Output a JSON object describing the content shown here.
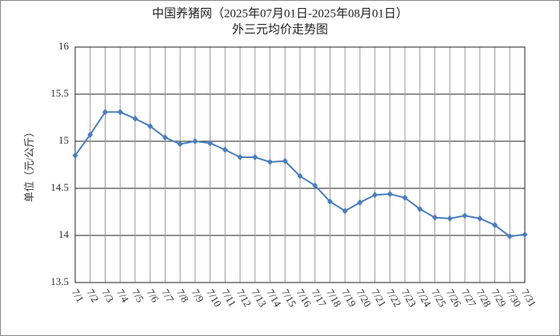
{
  "chart_data": {
    "type": "line",
    "title": "中国养猪网（2025年07月01日-2025年08月01日）",
    "subtitle": "外三元均价走势图",
    "y_label": "单位（元/公斤）",
    "categories": [
      "7/1",
      "7/2",
      "7/3",
      "7/4",
      "7/5",
      "7/6",
      "7/7",
      "7/8",
      "7/9",
      "7/10",
      "7/11",
      "7/12",
      "7/13",
      "7/14",
      "7/15",
      "7/16",
      "7/17",
      "7/18",
      "7/19",
      "7/20",
      "7/21",
      "7/22",
      "7/23",
      "7/24",
      "7/25",
      "7/26",
      "7/27",
      "7/28",
      "7/29",
      "7/30",
      "7/31"
    ],
    "series": [
      {
        "name": "外三元",
        "color": "#4a7ebb",
        "values": [
          14.85,
          15.07,
          15.31,
          15.31,
          15.24,
          15.16,
          15.04,
          14.97,
          15.0,
          14.98,
          14.91,
          14.83,
          14.83,
          14.78,
          14.79,
          14.63,
          14.53,
          14.36,
          14.26,
          14.35,
          14.43,
          14.44,
          14.4,
          14.28,
          14.19,
          14.18,
          14.21,
          14.18,
          14.11,
          13.99,
          14.01
        ]
      }
    ],
    "ylim": [
      13.5,
      16
    ],
    "yticks": [
      13.5,
      14,
      14.5,
      15,
      15.5,
      16
    ],
    "grid": true
  }
}
